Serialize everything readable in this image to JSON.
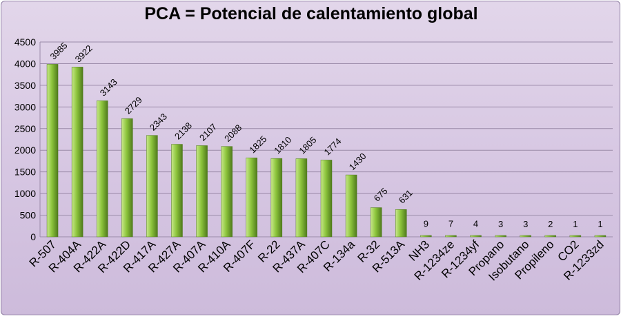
{
  "chart_data": {
    "type": "bar",
    "title": "PCA = Potencial de calentamiento global",
    "xlabel": "",
    "ylabel": "",
    "ylim": [
      0,
      4500
    ],
    "yticks": [
      0,
      500,
      1000,
      1500,
      2000,
      2500,
      3000,
      3500,
      4000,
      4500
    ],
    "grid": true,
    "legend": "none",
    "categories": [
      "R-507",
      "R-404A",
      "R-422A",
      "R-422D",
      "R-417A",
      "R-427A",
      "R-407A",
      "R-410A",
      "R-407F",
      "R-22",
      "R-437A",
      "R-407C",
      "R-134a",
      "R-32",
      "R-513A",
      "NH3",
      "R-1234ze",
      "R-1234yf",
      "Propano",
      "Isobutano",
      "Propileno",
      "CO2",
      "R-1233zd"
    ],
    "values": [
      3985,
      3922,
      3143,
      2729,
      2343,
      2138,
      2107,
      2088,
      1825,
      1810,
      1805,
      1774,
      1430,
      675,
      631,
      9,
      7,
      4,
      3,
      3,
      2,
      1,
      1
    ],
    "colors": {
      "bar_light": "#c8e88a",
      "bar_mid": "#8cc43c",
      "bar_dark": "#4f7a1c",
      "background": "#d9cae4",
      "grid": "#9a8aa8"
    }
  }
}
